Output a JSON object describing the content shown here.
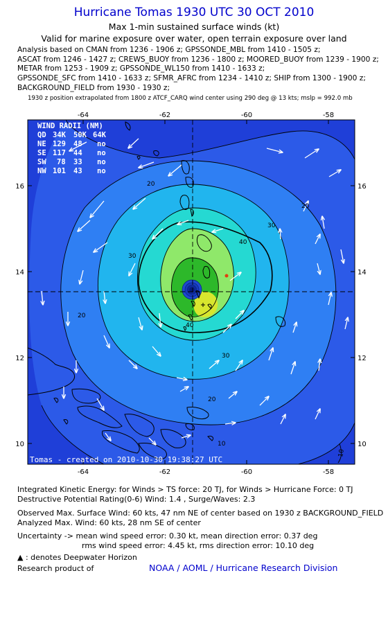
{
  "header": {
    "title": "Hurricane Tomas 1930 UTC 30 OCT 2010",
    "subtitle": "Max 1-min sustained surface winds (kt)",
    "valid_line": "Valid for marine exposure over water, open terrain exposure over land",
    "analysis_lines": [
      "Analysis based on CMAN from 1236 - 1906 z; GPSSONDE_MBL from 1410 - 1505 z;",
      "ASCAT from 1246 - 1427 z; CREWS_BUOY from 1236 - 1800 z; MOORED_BUOY from 1239 - 1900 z;",
      "METAR from 1253 - 1909 z; GPSSONDE_WL150 from 1410 - 1633 z;",
      "GPSSONDE_SFC from 1410 - 1633 z; SFMR_AFRC from 1234 - 1410 z; SHIP from 1300 - 1900 z;",
      "BACKGROUND_FIELD from 1930 - 1930 z;"
    ],
    "extrapolation": "1930 z position extrapolated from 1800 z ATCF_CARQ wind center using 290 deg @ 13 kts; mslp = 992.0 mb"
  },
  "map": {
    "lon_ticks": [
      "-64",
      "-62",
      "-60",
      "-58"
    ],
    "lat_ticks": [
      "16",
      "14",
      "12",
      "10"
    ],
    "contour_labels": [
      "20",
      "20",
      "30",
      "30",
      "40",
      "40",
      "30",
      "20",
      "20",
      "10",
      "10"
    ],
    "wind_radii": {
      "title": "WIND RADII (NM)",
      "header": [
        "QD",
        "34K",
        "50K",
        "64K"
      ],
      "rows": [
        [
          "NE",
          "129",
          "48",
          "no"
        ],
        [
          "SE",
          "117",
          "44",
          "no"
        ],
        [
          "SW",
          "78",
          "33",
          "no"
        ],
        [
          "NW",
          "101",
          "43",
          "no"
        ]
      ]
    },
    "credit": "Tomas - created on 2010-10-30 19:38:27 UTC",
    "colors": {
      "ocean_deep": "#1f3fd8",
      "band_10": "#2c5ae8",
      "band_20": "#2f7ff3",
      "band_30": "#21b5ee",
      "band_40": "#25d9d2",
      "band_50": "#8fe86a",
      "band_60": "#2db82a",
      "max_wind": "#d8e62e"
    }
  },
  "footer": {
    "ike": "Integrated Kinetic Energy:  for Winds > TS force: 20 TJ,  for Winds > Hurricane Force: 0 TJ",
    "dpr": "Destructive Potential Rating(0-6)   Wind: 1.4 , Surge/Waves: 2.3",
    "observed": "Observed Max. Surface Wind: 60 kts, 47 nm NE of center based on 1930 z BACKGROUND_FIELD",
    "analyzed": "Analyzed Max. Wind: 60 kts, 28 nm SE of center",
    "uncertainty1": "Uncertainty -> mean wind speed error: 0.30 kt,   mean direction error: 0.37 deg",
    "uncertainty2": "rms wind speed error: 4.45 kt,    rms direction error: 10.10 deg",
    "deepwater": ": denotes Deepwater Horizon",
    "research": "Research product of",
    "noaa": "NOAA / AOML / Hurricane Research Division"
  }
}
